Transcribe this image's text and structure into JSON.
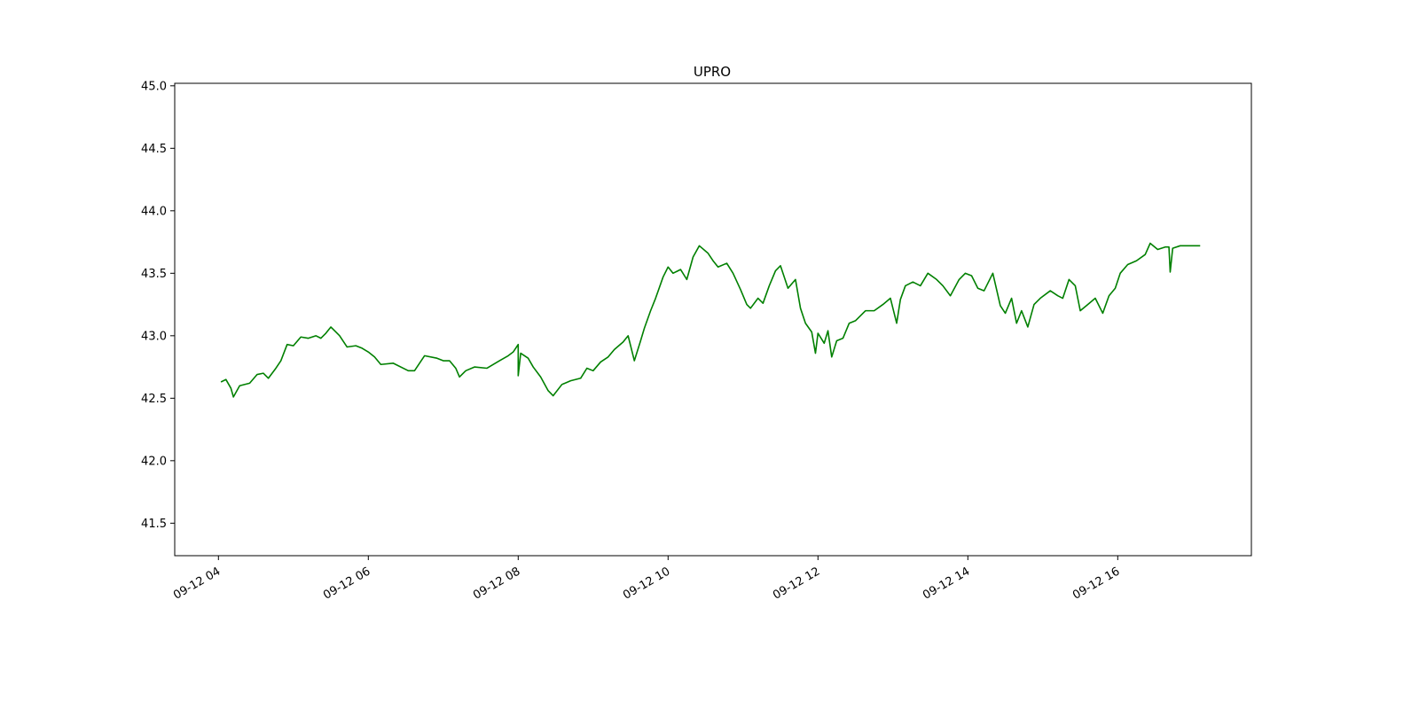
{
  "chart_data": {
    "type": "line",
    "title": "UPRO",
    "xlabel": "",
    "ylabel": "",
    "xlim": [
      "09-12 03:25",
      "09-12 17:47"
    ],
    "ylim": [
      41.24,
      45.02
    ],
    "grid": false,
    "legend": "none",
    "x_tick_labels": [
      "09-12 04",
      "09-12 06",
      "09-12 08",
      "09-12 10",
      "09-12 12",
      "09-12 14",
      "09-12 16"
    ],
    "y_tick_labels": [
      "41.5",
      "42.0",
      "42.5",
      "43.0",
      "43.5",
      "44.0",
      "44.5",
      "45.0"
    ],
    "series": [
      {
        "name": "",
        "color": "#008000",
        "x": [
          "09-12 04:02",
          "09-12 04:06",
          "09-12 04:10",
          "09-12 04:12",
          "09-12 04:17",
          "09-12 04:25",
          "09-12 04:31",
          "09-12 04:36",
          "09-12 04:40",
          "09-12 04:46",
          "09-12 04:50",
          "09-12 04:55",
          "09-12 05:00",
          "09-12 05:06",
          "09-12 05:12",
          "09-12 05:18",
          "09-12 05:22",
          "09-12 05:26",
          "09-12 05:30",
          "09-12 05:37",
          "09-12 05:43",
          "09-12 05:50",
          "09-12 05:55",
          "09-12 06:00",
          "09-12 06:05",
          "09-12 06:10",
          "09-12 06:20",
          "09-12 06:32",
          "09-12 06:37",
          "09-12 06:45",
          "09-12 06:55",
          "09-12 07:00",
          "09-12 07:05",
          "09-12 07:10",
          "09-12 07:13",
          "09-12 07:18",
          "09-12 07:25",
          "09-12 07:35",
          "09-12 07:45",
          "09-12 07:52",
          "09-12 07:56",
          "09-12 08:00",
          "09-12 08:00",
          "09-12 08:02",
          "09-12 08:08",
          "09-12 08:12",
          "09-12 08:18",
          "09-12 08:24",
          "09-12 08:28",
          "09-12 08:35",
          "09-12 08:42",
          "09-12 08:50",
          "09-12 08:55",
          "09-12 09:00",
          "09-12 09:06",
          "09-12 09:12",
          "09-12 09:17",
          "09-12 09:24",
          "09-12 09:28",
          "09-12 09:33",
          "09-12 09:38",
          "09-12 09:41",
          "09-12 09:46",
          "09-12 09:50",
          "09-12 09:56",
          "09-12 10:00",
          "09-12 10:04",
          "09-12 10:10",
          "09-12 10:15",
          "09-12 10:20",
          "09-12 10:25",
          "09-12 10:32",
          "09-12 10:36",
          "09-12 10:40",
          "09-12 10:47",
          "09-12 10:52",
          "09-12 10:58",
          "09-12 11:03",
          "09-12 11:06",
          "09-12 11:12",
          "09-12 11:16",
          "09-12 11:21",
          "09-12 11:26",
          "09-12 11:30",
          "09-12 11:36",
          "09-12 11:42",
          "09-12 11:46",
          "09-12 11:50",
          "09-12 11:55",
          "09-12 11:58",
          "09-12 12:00",
          "09-12 12:05",
          "09-12 12:08",
          "09-12 12:11",
          "09-12 12:15",
          "09-12 12:20",
          "09-12 12:25",
          "09-12 12:30",
          "09-12 12:38",
          "09-12 12:45",
          "09-12 12:52",
          "09-12 12:58",
          "09-12 13:03",
          "09-12 13:06",
          "09-12 13:10",
          "09-12 13:16",
          "09-12 13:22",
          "09-12 13:28",
          "09-12 13:35",
          "09-12 13:40",
          "09-12 13:46",
          "09-12 13:53",
          "09-12 13:58",
          "09-12 14:03",
          "09-12 14:08",
          "09-12 14:13",
          "09-12 14:20",
          "09-12 14:26",
          "09-12 14:30",
          "09-12 14:35",
          "09-12 14:39",
          "09-12 14:43",
          "09-12 14:48",
          "09-12 14:53",
          "09-12 14:58",
          "09-12 15:06",
          "09-12 15:12",
          "09-12 15:16",
          "09-12 15:21",
          "09-12 15:26",
          "09-12 15:30",
          "09-12 15:36",
          "09-12 15:42",
          "09-12 15:48",
          "09-12 15:53",
          "09-12 15:58",
          "09-12 16:02",
          "09-12 16:08",
          "09-12 16:15",
          "09-12 16:22",
          "09-12 16:26",
          "09-12 16:32",
          "09-12 16:38",
          "09-12 16:41",
          "09-12 16:42",
          "09-12 16:44",
          "09-12 16:50",
          "09-12 17:00",
          "09-12 17:06"
        ],
        "values": [
          42.63,
          42.65,
          42.58,
          42.51,
          42.6,
          42.62,
          42.69,
          42.7,
          42.66,
          42.74,
          42.8,
          42.93,
          42.92,
          42.99,
          42.98,
          43.0,
          42.98,
          43.02,
          43.07,
          43.0,
          42.91,
          42.92,
          42.9,
          42.87,
          42.83,
          42.77,
          42.78,
          42.72,
          42.72,
          42.84,
          42.82,
          42.8,
          42.8,
          42.74,
          42.67,
          42.72,
          42.75,
          42.74,
          42.8,
          42.84,
          42.87,
          42.93,
          42.68,
          42.86,
          42.82,
          42.75,
          42.67,
          42.56,
          42.52,
          42.61,
          42.64,
          42.66,
          42.74,
          42.72,
          42.79,
          42.83,
          42.89,
          42.95,
          43.0,
          42.8,
          42.96,
          43.06,
          43.2,
          43.3,
          43.47,
          43.55,
          43.5,
          43.53,
          43.45,
          43.63,
          43.72,
          43.66,
          43.6,
          43.55,
          43.58,
          43.5,
          43.37,
          43.25,
          43.22,
          43.3,
          43.26,
          43.4,
          43.52,
          43.56,
          43.38,
          43.45,
          43.22,
          43.1,
          43.03,
          42.86,
          43.02,
          42.94,
          43.04,
          42.83,
          42.96,
          42.98,
          43.1,
          43.12,
          43.2,
          43.2,
          43.25,
          43.3,
          43.1,
          43.29,
          43.4,
          43.43,
          43.4,
          43.5,
          43.45,
          43.4,
          43.32,
          43.45,
          43.5,
          43.48,
          43.38,
          43.36,
          43.5,
          43.24,
          43.18,
          43.3,
          43.1,
          43.2,
          43.07,
          43.25,
          43.3,
          43.36,
          43.32,
          43.3,
          43.45,
          43.4,
          43.2,
          43.25,
          43.3,
          43.18,
          43.32,
          43.38,
          43.5,
          43.57,
          43.6,
          43.65,
          43.74,
          43.69,
          43.71,
          43.71,
          43.51,
          43.7,
          43.72,
          43.72,
          43.72
        ]
      }
    ]
  }
}
